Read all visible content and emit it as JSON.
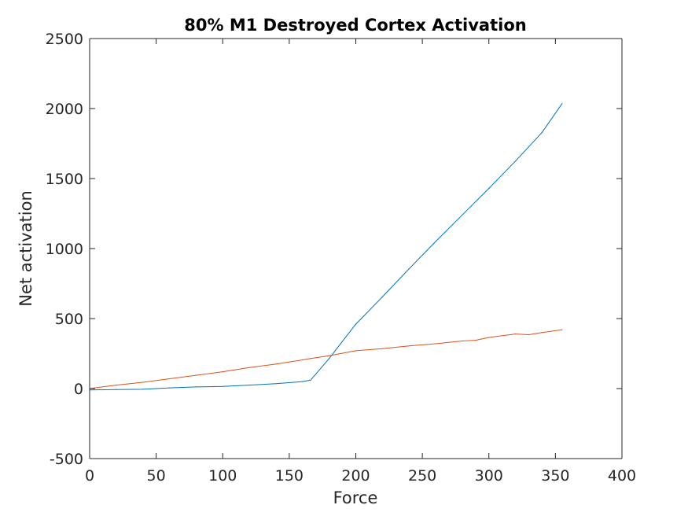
{
  "chart_data": {
    "type": "line",
    "title": "80% M1 Destroyed Cortex Activation",
    "xlabel": "Force",
    "ylabel": "Net activation",
    "xlim": [
      0,
      400
    ],
    "ylim": [
      -500,
      2500
    ],
    "xticks": [
      0,
      50,
      100,
      150,
      200,
      250,
      300,
      350,
      400
    ],
    "yticks": [
      -500,
      0,
      500,
      1000,
      1500,
      2000,
      2500
    ],
    "xtick_labels": [
      "0",
      "50",
      "100",
      "150",
      "200",
      "250",
      "300",
      "350",
      "400"
    ],
    "ytick_labels": [
      "-500",
      "0",
      "500",
      "1000",
      "1500",
      "2000",
      "2500"
    ],
    "grid": false,
    "legend": "none",
    "series": [
      {
        "color": "#0072BD",
        "x": [
          0,
          20,
          40,
          60,
          80,
          100,
          120,
          140,
          160,
          166,
          180,
          200,
          220,
          240,
          260,
          280,
          300,
          320,
          340,
          355
        ],
        "y": [
          -10,
          -7,
          -5,
          5,
          12,
          15,
          25,
          35,
          50,
          60,
          215,
          460,
          655,
          855,
          1050,
          1240,
          1430,
          1625,
          1830,
          2035
        ]
      },
      {
        "color": "#D95319",
        "x": [
          0,
          20,
          40,
          60,
          80,
          100,
          120,
          140,
          160,
          166,
          180,
          200,
          220,
          240,
          260,
          280,
          290,
          300,
          320,
          330,
          340,
          355
        ],
        "y": [
          0,
          25,
          45,
          70,
          95,
          120,
          150,
          175,
          205,
          215,
          235,
          270,
          285,
          305,
          320,
          340,
          345,
          365,
          390,
          385,
          400,
          420
        ]
      }
    ]
  }
}
